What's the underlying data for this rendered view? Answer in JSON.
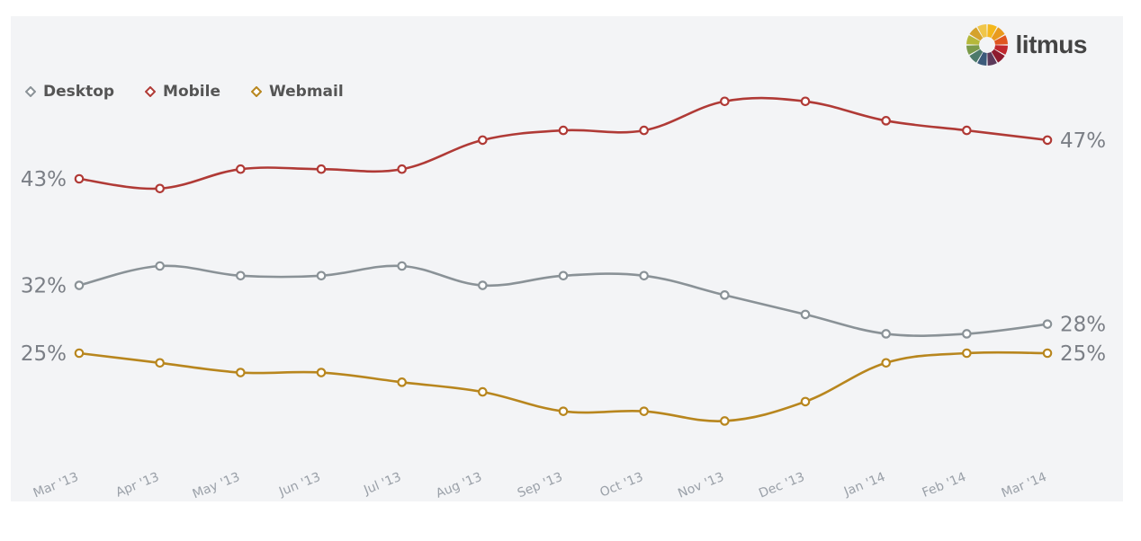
{
  "logo": {
    "text": "litmus",
    "colors": [
      "#f5b81c",
      "#e99a1e",
      "#e0561f",
      "#c1272d",
      "#8e1b2f",
      "#5c3a5a",
      "#3b5a7a",
      "#4d7a6b",
      "#7a9a4a",
      "#b5b83a",
      "#d5a22c",
      "#f0c64a"
    ]
  },
  "chart_data": {
    "type": "line",
    "title": "",
    "xlabel": "",
    "ylabel": "",
    "categories": [
      "Mar '13",
      "Apr '13",
      "May '13",
      "Jun '13",
      "Jul '13",
      "Aug '13",
      "Sep '13",
      "Oct '13",
      "Nov '13",
      "Dec '13",
      "Jan '14",
      "Feb '14",
      "Mar '14"
    ],
    "series": [
      {
        "name": "Desktop",
        "color": "#8a9297",
        "values": [
          32,
          34,
          33,
          33,
          34,
          32,
          33,
          33,
          31,
          29,
          27,
          27,
          28
        ],
        "start_label": "32%",
        "end_label": "28%"
      },
      {
        "name": "Mobile",
        "color": "#b03a36",
        "values": [
          43,
          42,
          44,
          44,
          44,
          47,
          48,
          48,
          51,
          51,
          49,
          48,
          47
        ],
        "start_label": "43%",
        "end_label": "47%"
      },
      {
        "name": "Webmail",
        "color": "#b8861e",
        "values": [
          25,
          24,
          23,
          23,
          22,
          21,
          19,
          19,
          18,
          20,
          24,
          25,
          25
        ],
        "start_label": "25%",
        "end_label": "25%"
      }
    ],
    "ylim": [
      16,
      52
    ],
    "grid": false,
    "legend": "top-left"
  }
}
